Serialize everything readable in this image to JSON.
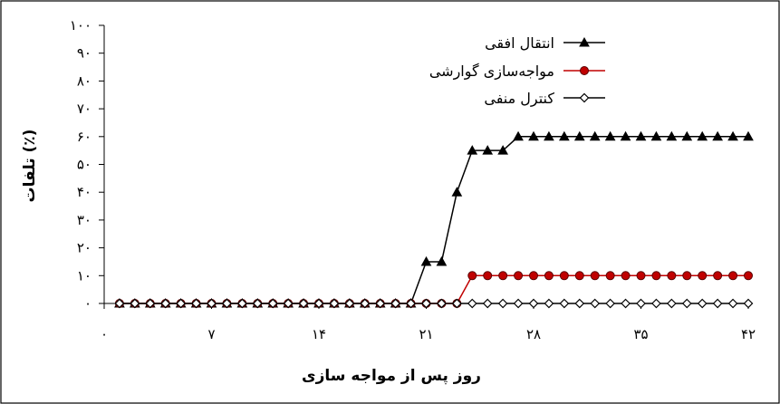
{
  "chart_data": {
    "type": "line",
    "xlabel": "روز پس از مواجه سازی",
    "ylabel": "تلفات (٪)",
    "xlim": [
      0,
      42
    ],
    "ylim": [
      0,
      100
    ],
    "x_ticks": [
      0,
      7,
      14,
      21,
      28,
      35,
      42
    ],
    "x_tick_labels": [
      "۰",
      "۷",
      "۱۴",
      "۲۱",
      "۲۸",
      "۳۵",
      "۴۲"
    ],
    "y_ticks": [
      0,
      10,
      20,
      30,
      40,
      50,
      60,
      70,
      80,
      90,
      100
    ],
    "y_tick_labels": [
      "۰",
      "۱۰",
      "۲۰",
      "۳۰",
      "۴۰",
      "۵۰",
      "۶۰",
      "۷۰",
      "۸۰",
      "۹۰",
      "۱۰۰"
    ],
    "grid": false,
    "legend_position": "top-right",
    "x": [
      1,
      2,
      3,
      4,
      5,
      6,
      7,
      8,
      9,
      10,
      11,
      12,
      13,
      14,
      15,
      16,
      17,
      18,
      19,
      20,
      21,
      22,
      23,
      24,
      25,
      26,
      27,
      28,
      29,
      30,
      31,
      32,
      33,
      34,
      35,
      36,
      37,
      38,
      39,
      40,
      41,
      42
    ],
    "series": [
      {
        "name": "انتقال افقی",
        "color": "#000000",
        "marker": "triangle",
        "values": [
          0,
          0,
          0,
          0,
          0,
          0,
          0,
          0,
          0,
          0,
          0,
          0,
          0,
          0,
          0,
          0,
          0,
          0,
          0,
          0,
          15,
          15,
          40,
          55,
          55,
          55,
          60,
          60,
          60,
          60,
          60,
          60,
          60,
          60,
          60,
          60,
          60,
          60,
          60,
          60,
          60,
          60
        ]
      },
      {
        "name": "مواجه‌سازی گوارشی",
        "color": "#c00000",
        "marker": "circle",
        "values": [
          0,
          0,
          0,
          0,
          0,
          0,
          0,
          0,
          0,
          0,
          0,
          0,
          0,
          0,
          0,
          0,
          0,
          0,
          0,
          0,
          0,
          0,
          0,
          10,
          10,
          10,
          10,
          10,
          10,
          10,
          10,
          10,
          10,
          10,
          10,
          10,
          10,
          10,
          10,
          10,
          10,
          10
        ]
      },
      {
        "name": "کنترل منفی",
        "color": "#000000",
        "marker": "diamond",
        "values": [
          0,
          0,
          0,
          0,
          0,
          0,
          0,
          0,
          0,
          0,
          0,
          0,
          0,
          0,
          0,
          0,
          0,
          0,
          0,
          0,
          0,
          0,
          0,
          0,
          0,
          0,
          0,
          0,
          0,
          0,
          0,
          0,
          0,
          0,
          0,
          0,
          0,
          0,
          0,
          0,
          0,
          0
        ]
      }
    ]
  }
}
